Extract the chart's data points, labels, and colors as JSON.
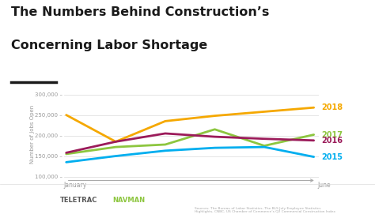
{
  "title_line1": "The Numbers Behind Construction’s",
  "title_line2": "Concerning Labor Shortage",
  "ylabel": "Number of Jobs Open",
  "xlabel_left": "January",
  "xlabel_right": "June",
  "x": [
    0,
    1,
    2,
    3,
    4,
    5
  ],
  "series_order": [
    "2018",
    "2017",
    "2016",
    "2015"
  ],
  "series": {
    "2018": {
      "values": [
        250000,
        185000,
        235000,
        248000,
        258000,
        268000
      ],
      "color": "#f5a800"
    },
    "2017": {
      "values": [
        155000,
        172000,
        178000,
        215000,
        175000,
        202000
      ],
      "color": "#8dc63f"
    },
    "2016": {
      "values": [
        158000,
        185000,
        205000,
        197000,
        192000,
        188000
      ],
      "color": "#9b1b5a"
    },
    "2015": {
      "values": [
        135000,
        150000,
        163000,
        170000,
        172000,
        148000
      ],
      "color": "#00aeef"
    }
  },
  "ylim": [
    92000,
    315000
  ],
  "yticks": [
    100000,
    150000,
    200000,
    250000,
    300000
  ],
  "ytick_labels": [
    "100,000 –",
    "150,000 –",
    "200,000 –",
    "250,000 –",
    "300,000 –"
  ],
  "bg_color": "#ffffff",
  "grid_color": "#e0e0e0",
  "source_text": "Sources: The Bureau of Labor Statistics, The BLS July Employee Statistics\nHighlights, CNBC, US Chamber of Commerce’s Q2 Commercial Construction Index",
  "underline_color": "#1a1a1a",
  "title_color": "#1a1a1a",
  "axis_label_color": "#999999",
  "tick_color": "#999999"
}
